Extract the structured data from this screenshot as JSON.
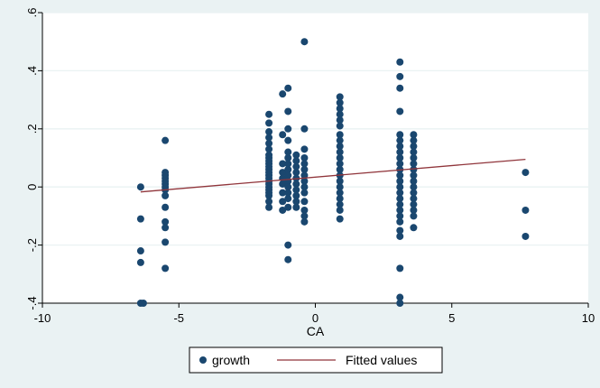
{
  "chart_data": {
    "type": "scatter",
    "xlabel": "CA",
    "ylabel": "",
    "xlim": [
      -10,
      10
    ],
    "ylim": [
      -0.4,
      0.6
    ],
    "x_ticks": [
      -10,
      -5,
      0,
      5,
      10
    ],
    "x_tick_labels": [
      "-10",
      "-5",
      "0",
      "5",
      "10"
    ],
    "y_ticks": [
      -0.4,
      -0.2,
      0,
      0.2,
      0.4,
      0.6
    ],
    "y_tick_labels": [
      "-.4",
      "-.2",
      "0",
      ".2",
      ".4",
      ".6"
    ],
    "grid": "horizontal",
    "legend_position": "bottom",
    "legend": [
      "growth",
      "Fitted values"
    ],
    "colors": {
      "scatter": "#1a476f",
      "fitted": "#90353b",
      "plot_bg": "#ffffff",
      "outer_bg": "#eaf2f3",
      "grid": "#eaf2f3"
    },
    "series": [
      {
        "name": "growth",
        "type": "scatter",
        "points": [
          [
            -6.4,
            0.0
          ],
          [
            -6.4,
            -0.11
          ],
          [
            -6.4,
            -0.22
          ],
          [
            -6.4,
            -0.26
          ],
          [
            -6.4,
            -0.4
          ],
          [
            -6.3,
            -0.4
          ],
          [
            -5.5,
            0.16
          ],
          [
            -5.5,
            0.05
          ],
          [
            -5.5,
            0.04
          ],
          [
            -5.5,
            0.03
          ],
          [
            -5.5,
            0.02
          ],
          [
            -5.5,
            0.01
          ],
          [
            -5.5,
            0.0
          ],
          [
            -5.5,
            -0.01
          ],
          [
            -5.5,
            -0.03
          ],
          [
            -5.5,
            -0.07
          ],
          [
            -5.5,
            -0.12
          ],
          [
            -5.5,
            -0.14
          ],
          [
            -5.5,
            -0.19
          ],
          [
            -5.5,
            -0.28
          ],
          [
            -1.7,
            0.25
          ],
          [
            -1.7,
            0.22
          ],
          [
            -1.7,
            0.19
          ],
          [
            -1.7,
            0.17
          ],
          [
            -1.7,
            0.15
          ],
          [
            -1.7,
            0.13
          ],
          [
            -1.7,
            0.11
          ],
          [
            -1.7,
            0.1
          ],
          [
            -1.7,
            0.09
          ],
          [
            -1.7,
            0.08
          ],
          [
            -1.7,
            0.07
          ],
          [
            -1.7,
            0.06
          ],
          [
            -1.7,
            0.05
          ],
          [
            -1.7,
            0.04
          ],
          [
            -1.7,
            0.03
          ],
          [
            -1.7,
            0.02
          ],
          [
            -1.7,
            0.01
          ],
          [
            -1.7,
            0.0
          ],
          [
            -1.7,
            -0.01
          ],
          [
            -1.7,
            -0.02
          ],
          [
            -1.7,
            -0.03
          ],
          [
            -1.7,
            -0.05
          ],
          [
            -1.7,
            -0.07
          ],
          [
            -1.2,
            0.32
          ],
          [
            -1.2,
            0.18
          ],
          [
            -1.2,
            0.08
          ],
          [
            -1.2,
            0.05
          ],
          [
            -1.2,
            0.03
          ],
          [
            -1.2,
            0.01
          ],
          [
            -1.2,
            -0.02
          ],
          [
            -1.2,
            -0.05
          ],
          [
            -1.2,
            -0.08
          ],
          [
            -1.0,
            0.34
          ],
          [
            -1.0,
            0.26
          ],
          [
            -1.0,
            0.2
          ],
          [
            -1.0,
            0.16
          ],
          [
            -1.0,
            0.12
          ],
          [
            -1.0,
            0.1
          ],
          [
            -1.0,
            0.08
          ],
          [
            -1.0,
            0.06
          ],
          [
            -1.0,
            0.04
          ],
          [
            -1.0,
            0.02
          ],
          [
            -1.0,
            0.0
          ],
          [
            -1.0,
            -0.02
          ],
          [
            -1.0,
            -0.04
          ],
          [
            -1.0,
            -0.07
          ],
          [
            -1.0,
            -0.2
          ],
          [
            -1.0,
            -0.25
          ],
          [
            -0.7,
            0.11
          ],
          [
            -0.7,
            0.09
          ],
          [
            -0.7,
            0.07
          ],
          [
            -0.7,
            0.05
          ],
          [
            -0.7,
            0.03
          ],
          [
            -0.7,
            0.01
          ],
          [
            -0.7,
            -0.01
          ],
          [
            -0.7,
            -0.03
          ],
          [
            -0.7,
            -0.05
          ],
          [
            -0.7,
            -0.07
          ],
          [
            -0.4,
            0.5
          ],
          [
            -0.4,
            0.2
          ],
          [
            -0.4,
            0.13
          ],
          [
            -0.4,
            0.1
          ],
          [
            -0.4,
            0.08
          ],
          [
            -0.4,
            0.06
          ],
          [
            -0.4,
            0.04
          ],
          [
            -0.4,
            0.02
          ],
          [
            -0.4,
            0.0
          ],
          [
            -0.4,
            -0.02
          ],
          [
            -0.4,
            -0.05
          ],
          [
            -0.4,
            -0.08
          ],
          [
            -0.4,
            -0.1
          ],
          [
            -0.4,
            -0.12
          ],
          [
            0.9,
            0.31
          ],
          [
            0.9,
            0.29
          ],
          [
            0.9,
            0.27
          ],
          [
            0.9,
            0.25
          ],
          [
            0.9,
            0.23
          ],
          [
            0.9,
            0.21
          ],
          [
            0.9,
            0.18
          ],
          [
            0.9,
            0.16
          ],
          [
            0.9,
            0.14
          ],
          [
            0.9,
            0.12
          ],
          [
            0.9,
            0.1
          ],
          [
            0.9,
            0.08
          ],
          [
            0.9,
            0.06
          ],
          [
            0.9,
            0.04
          ],
          [
            0.9,
            0.02
          ],
          [
            0.9,
            0.0
          ],
          [
            0.9,
            -0.02
          ],
          [
            0.9,
            -0.04
          ],
          [
            0.9,
            -0.06
          ],
          [
            0.9,
            -0.08
          ],
          [
            0.9,
            -0.11
          ],
          [
            3.1,
            0.43
          ],
          [
            3.1,
            0.38
          ],
          [
            3.1,
            0.34
          ],
          [
            3.1,
            0.26
          ],
          [
            3.1,
            0.18
          ],
          [
            3.1,
            0.16
          ],
          [
            3.1,
            0.14
          ],
          [
            3.1,
            0.12
          ],
          [
            3.1,
            0.1
          ],
          [
            3.1,
            0.08
          ],
          [
            3.1,
            0.06
          ],
          [
            3.1,
            0.04
          ],
          [
            3.1,
            0.02
          ],
          [
            3.1,
            0.0
          ],
          [
            3.1,
            -0.02
          ],
          [
            3.1,
            -0.04
          ],
          [
            3.1,
            -0.06
          ],
          [
            3.1,
            -0.08
          ],
          [
            3.1,
            -0.1
          ],
          [
            3.1,
            -0.12
          ],
          [
            3.1,
            -0.15
          ],
          [
            3.1,
            -0.17
          ],
          [
            3.1,
            -0.28
          ],
          [
            3.1,
            -0.38
          ],
          [
            3.1,
            -0.4
          ],
          [
            3.6,
            0.18
          ],
          [
            3.6,
            0.16
          ],
          [
            3.6,
            0.14
          ],
          [
            3.6,
            0.12
          ],
          [
            3.6,
            0.1
          ],
          [
            3.6,
            0.08
          ],
          [
            3.6,
            0.06
          ],
          [
            3.6,
            0.04
          ],
          [
            3.6,
            0.02
          ],
          [
            3.6,
            0.0
          ],
          [
            3.6,
            -0.02
          ],
          [
            3.6,
            -0.04
          ],
          [
            3.6,
            -0.06
          ],
          [
            3.6,
            -0.08
          ],
          [
            3.6,
            -0.1
          ],
          [
            3.6,
            -0.14
          ],
          [
            7.7,
            0.05
          ],
          [
            7.7,
            -0.08
          ],
          [
            7.7,
            -0.17
          ]
        ]
      },
      {
        "name": "Fitted values",
        "type": "line",
        "points": [
          [
            -6.4,
            -0.017
          ],
          [
            7.7,
            0.095
          ]
        ]
      }
    ]
  }
}
